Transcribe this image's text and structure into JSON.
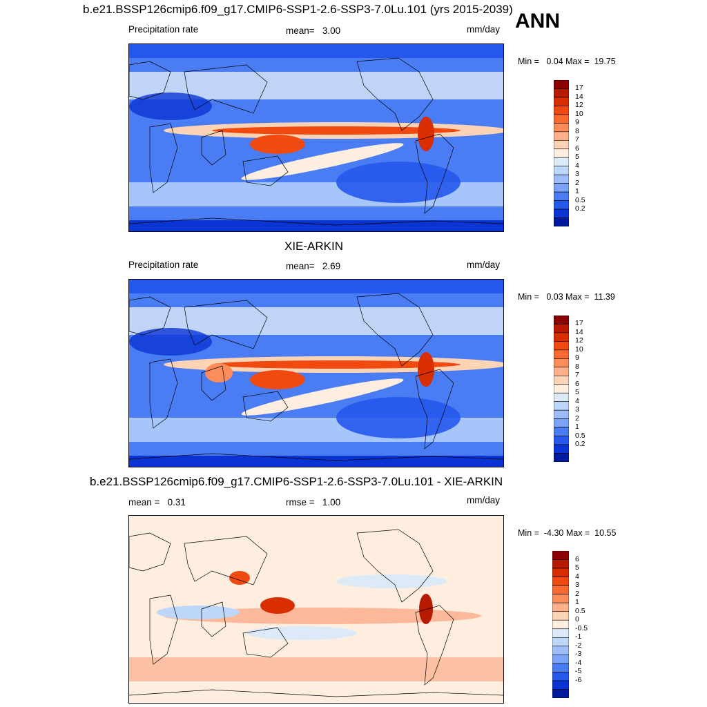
{
  "header": {
    "title": "b.e21.BSSP126cmip6.f09_g17.CMIP6-SSP1-2.6-SSP3-7.0Lu.101 (yrs 2015-2039)",
    "season": "ANN"
  },
  "panels": [
    {
      "id": "model",
      "title": "",
      "left_label": "Precipitation rate",
      "center_label": "mean=   3.00",
      "units": "mm/day",
      "minmax": "Min =   0.04 Max =  19.75"
    },
    {
      "id": "obs",
      "title": "XIE-ARKIN",
      "left_label": "Precipitation rate",
      "center_label": "mean=   2.69",
      "units": "mm/day",
      "minmax": "Min =   0.03 Max =  11.39"
    },
    {
      "id": "diff",
      "title": "b.e21.BSSP126cmip6.f09_g17.CMIP6-SSP1-2.6-SSP3-7.0Lu.101 - XIE-ARKIN",
      "left_label": "mean =   0.31",
      "center_label": "rmse =   1.00",
      "units": "mm/day",
      "minmax": "Min =  -4.30 Max =  10.55"
    }
  ],
  "colorbars": {
    "precip": {
      "labels": [
        "17",
        "14",
        "12",
        "10",
        "9",
        "8",
        "7",
        "6",
        "5",
        "4",
        "3",
        "2",
        "1",
        "0.5",
        "0.2"
      ],
      "colors": [
        "#8b0000",
        "#b81a00",
        "#d92e00",
        "#f04a10",
        "#fa6a30",
        "#fc8c5a",
        "#fdb089",
        "#fdd3b6",
        "#fdeedf",
        "#dceaf8",
        "#bdd7fb",
        "#9dbdfa",
        "#7ba3f8",
        "#4a7cf3",
        "#2658ec",
        "#0a34d4",
        "#001a9e"
      ]
    },
    "diff": {
      "labels": [
        "6",
        "5",
        "4",
        "3",
        "2",
        "1",
        "0.5",
        "0",
        "-0.5",
        "-1",
        "-2",
        "-3",
        "-4",
        "-5",
        "-6"
      ],
      "colors": [
        "#8b0000",
        "#b81a00",
        "#d92e00",
        "#f04a10",
        "#fa6a30",
        "#fc8c5a",
        "#fdb089",
        "#fdd3b6",
        "#fdeedf",
        "#dceaf8",
        "#bdd7fb",
        "#9dbdfa",
        "#7ba3f8",
        "#4a7cf3",
        "#2658ec",
        "#0a34d4",
        "#001a9e"
      ]
    }
  }
}
